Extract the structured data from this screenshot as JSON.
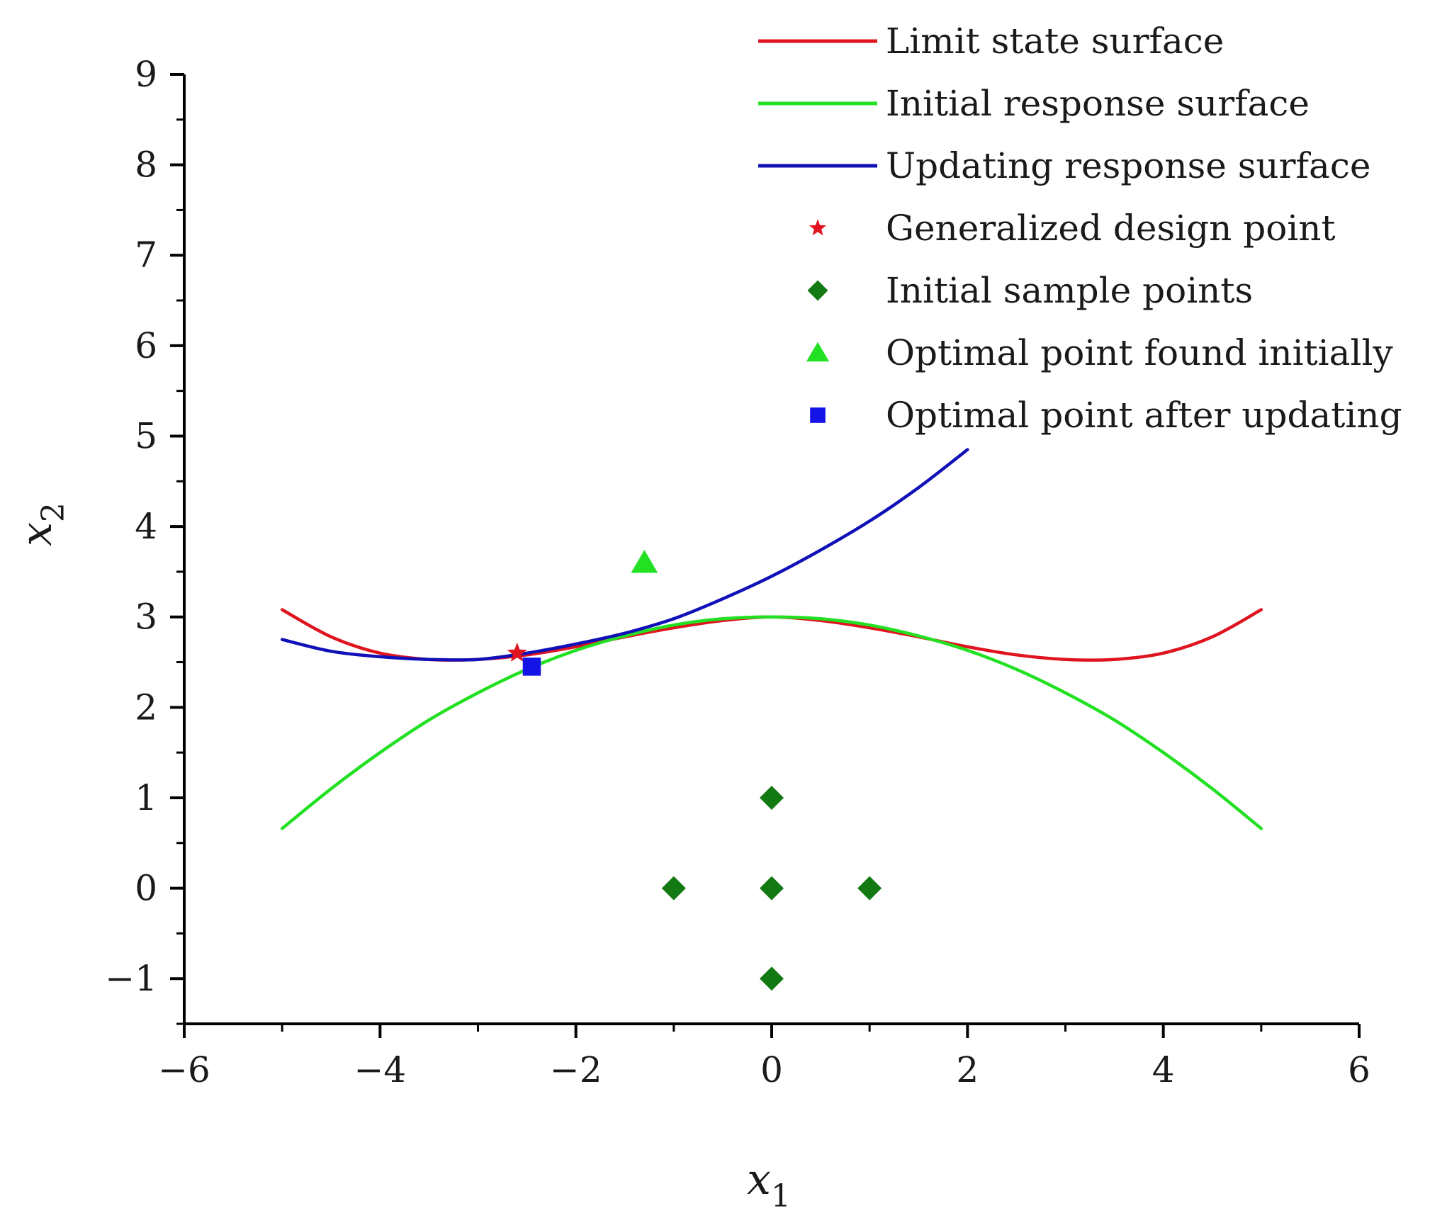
{
  "chart_data": {
    "type": "line",
    "title": "",
    "xlabel": "x",
    "xlabel_subscript": "1",
    "ylabel": "x",
    "ylabel_subscript": "2",
    "xlim": [
      -6,
      6
    ],
    "ylim": [
      -1.5,
      9
    ],
    "x_ticks": [
      -6,
      -4,
      -2,
      0,
      2,
      4,
      6
    ],
    "x_tick_labels": [
      "−6",
      "−4",
      "−2",
      "0",
      "2",
      "4",
      "6"
    ],
    "y_ticks": [
      -1,
      0,
      1,
      2,
      3,
      4,
      5,
      6,
      7,
      8,
      9
    ],
    "y_tick_labels": [
      "−1",
      "0",
      "1",
      "2",
      "3",
      "4",
      "5",
      "6",
      "7",
      "8",
      "9"
    ],
    "grid": false,
    "legend_position": "top-right",
    "series": [
      {
        "name": "Limit state surface",
        "kind": "line",
        "color": "#e0141e",
        "x": [
          -5,
          -4.5,
          -4,
          -3.5,
          -3,
          -2.5,
          -2,
          -1.5,
          -1,
          -0.5,
          0,
          0.5,
          1,
          1.5,
          2,
          2.5,
          3,
          3.5,
          4,
          4.5,
          5
        ],
        "y": [
          3.08,
          2.78,
          2.6,
          2.53,
          2.53,
          2.58,
          2.67,
          2.78,
          2.88,
          2.96,
          3.0,
          2.96,
          2.88,
          2.78,
          2.67,
          2.58,
          2.53,
          2.53,
          2.6,
          2.78,
          3.08
        ]
      },
      {
        "name": "Initial response surface",
        "kind": "line",
        "color": "#22e022",
        "x": [
          -5,
          -4.5,
          -4,
          -3.5,
          -3,
          -2.5,
          -2,
          -1.5,
          -1,
          -0.5,
          0,
          0.5,
          1,
          1.5,
          2,
          2.5,
          3,
          3.5,
          4,
          4.5,
          5
        ],
        "y": [
          0.66,
          1.1,
          1.5,
          1.86,
          2.16,
          2.42,
          2.63,
          2.79,
          2.91,
          2.98,
          3.0,
          2.98,
          2.91,
          2.79,
          2.63,
          2.42,
          2.16,
          1.86,
          1.5,
          1.1,
          0.66
        ]
      },
      {
        "name": "Updating response surface",
        "kind": "line",
        "color": "#1010b8",
        "x": [
          -5,
          -4.5,
          -4,
          -3.5,
          -3,
          -2.5,
          -2,
          -1.5,
          -1,
          -0.5,
          0,
          0.5,
          1,
          1.5,
          2
        ],
        "y": [
          2.75,
          2.62,
          2.56,
          2.53,
          2.53,
          2.6,
          2.7,
          2.82,
          2.98,
          3.2,
          3.45,
          3.74,
          4.06,
          4.43,
          4.85
        ]
      },
      {
        "name": "Generalized design point",
        "kind": "marker",
        "marker": "star",
        "color": "#e0141e",
        "points": [
          {
            "x": -2.6,
            "y": 2.6
          }
        ]
      },
      {
        "name": "Initial sample points",
        "kind": "marker",
        "marker": "diamond",
        "color": "#137a13",
        "points": [
          {
            "x": 0,
            "y": 1
          },
          {
            "x": -1,
            "y": 0
          },
          {
            "x": 0,
            "y": 0
          },
          {
            "x": 1,
            "y": 0
          },
          {
            "x": 0,
            "y": -1
          }
        ]
      },
      {
        "name": "Optimal point found initially",
        "kind": "marker",
        "marker": "triangle",
        "color": "#22e022",
        "points": [
          {
            "x": -1.3,
            "y": 3.6
          }
        ]
      },
      {
        "name": "Optimal point after updating",
        "kind": "marker",
        "marker": "square",
        "color": "#1414e6",
        "points": [
          {
            "x": -2.45,
            "y": 2.45
          }
        ]
      }
    ]
  }
}
